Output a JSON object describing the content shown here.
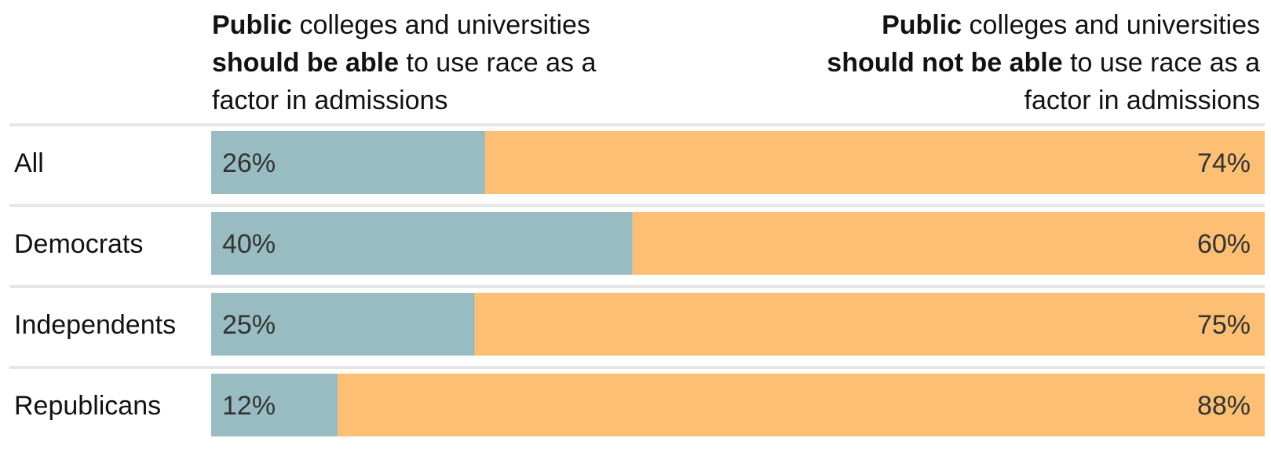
{
  "header": {
    "left": {
      "word1": "Public",
      "text1": " colleges and universities",
      "bold2": "should be able",
      "text2": " to use race as a",
      "text3": "factor in admissions"
    },
    "right": {
      "word1": "Public",
      "text1": " colleges and universities",
      "bold2": "should not be able",
      "text2": " to use race as a",
      "text3": "factor in admissions"
    }
  },
  "colors": {
    "should_be_able": "#98bcc1",
    "should_not_be_able": "#fcbf74",
    "separator": "#e6e6e6"
  },
  "chart_data": {
    "type": "bar",
    "stacked": true,
    "orientation": "horizontal",
    "categories": [
      "All",
      "Democrats",
      "Independents",
      "Republicans"
    ],
    "series": [
      {
        "values": [
          26,
          40,
          25,
          12
        ],
        "labels": [
          "26%",
          "40%",
          "25%",
          "12%"
        ]
      },
      {
        "values": [
          74,
          60,
          75,
          88
        ],
        "labels": [
          "74%",
          "60%",
          "75%",
          "88%"
        ]
      }
    ],
    "xlim": [
      0,
      100
    ],
    "unit": "%"
  }
}
